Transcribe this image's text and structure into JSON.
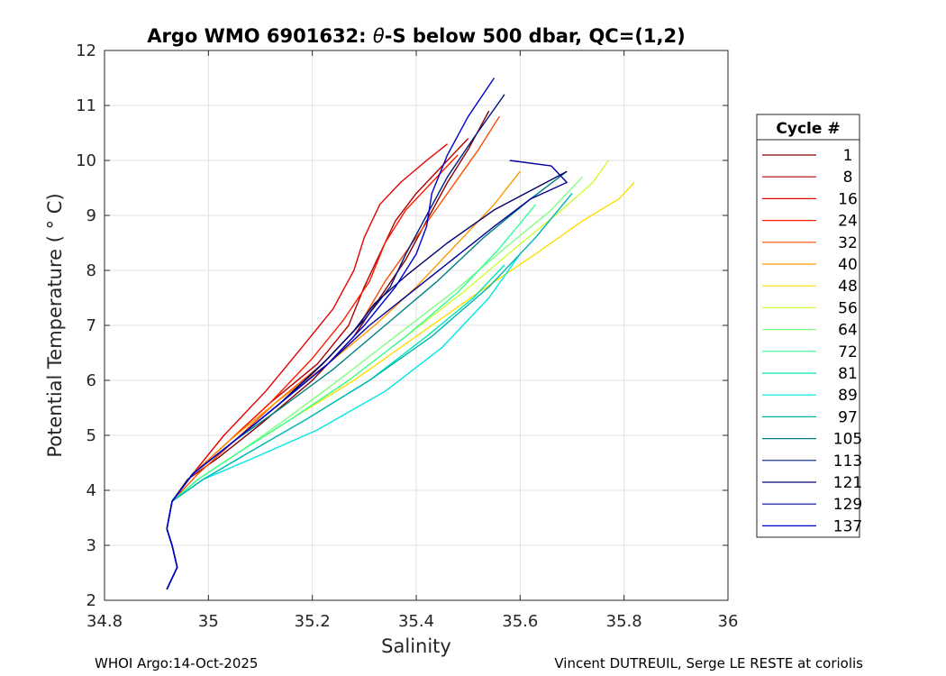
{
  "chart_data": {
    "type": "line",
    "title": "Argo WMO 6901632: θ-S below 500 dbar,  QC=(1,2)",
    "title_parts": {
      "before": "Argo WMO 6901632: ",
      "symbol": "θ",
      "after": "-S below 500 dbar,  QC=(1,2)"
    },
    "xlabel": "Salinity",
    "ylabel": "Potential Temperature ( ° C)",
    "xlim": [
      34.8,
      36
    ],
    "ylim": [
      2,
      12
    ],
    "xticks": [
      "34.8",
      "35",
      "35.2",
      "35.4",
      "35.6",
      "35.8",
      "36"
    ],
    "yticks": [
      "2",
      "3",
      "4",
      "5",
      "6",
      "7",
      "8",
      "9",
      "10",
      "11",
      "12"
    ],
    "grid": true,
    "legend_position": "right-outside",
    "legend": {
      "title": "Cycle #",
      "entries": [
        {
          "label": "1",
          "color": "#800000"
        },
        {
          "label": "8",
          "color": "#b30000"
        },
        {
          "label": "16",
          "color": "#e60000"
        },
        {
          "label": "24",
          "color": "#ff1a00"
        },
        {
          "label": "32",
          "color": "#ff4d00"
        },
        {
          "label": "40",
          "color": "#ff9900"
        },
        {
          "label": "48",
          "color": "#ffdd00"
        },
        {
          "label": "56",
          "color": "#ccff33"
        },
        {
          "label": "64",
          "color": "#80ff80"
        },
        {
          "label": "72",
          "color": "#33ff99"
        },
        {
          "label": "81",
          "color": "#00e6b3"
        },
        {
          "label": "89",
          "color": "#00e6e6"
        },
        {
          "label": "97",
          "color": "#00b3b3"
        },
        {
          "label": "105",
          "color": "#007f7f"
        },
        {
          "label": "113",
          "color": "#001a80"
        },
        {
          "label": "121",
          "color": "#00006b"
        },
        {
          "label": "129",
          "color": "#000099"
        },
        {
          "label": "137",
          "color": "#0000cc"
        }
      ]
    },
    "series": [
      {
        "name": "1",
        "x": [
          34.92,
          34.94,
          34.93,
          34.92,
          34.93,
          34.96,
          35.02,
          35.1,
          35.2,
          35.28,
          35.33,
          35.38,
          35.42,
          35.46,
          35.5,
          35.54
        ],
        "y": [
          2.2,
          2.6,
          3.0,
          3.3,
          3.8,
          4.2,
          4.6,
          5.2,
          6.0,
          6.8,
          7.5,
          8.2,
          8.9,
          9.6,
          10.2,
          10.9
        ]
      },
      {
        "name": "8",
        "x": [
          34.92,
          34.94,
          34.93,
          34.92,
          34.93,
          34.97,
          35.04,
          35.12,
          35.21,
          35.27,
          35.3,
          35.33,
          35.36,
          35.4,
          35.45,
          35.5
        ],
        "y": [
          2.2,
          2.6,
          3.0,
          3.3,
          3.8,
          4.3,
          4.9,
          5.6,
          6.3,
          7.0,
          7.7,
          8.3,
          8.9,
          9.4,
          9.9,
          10.4
        ]
      },
      {
        "name": "16",
        "x": [
          34.92,
          34.94,
          34.93,
          34.92,
          34.93,
          34.97,
          35.03,
          35.11,
          35.18,
          35.24,
          35.28,
          35.3,
          35.33,
          35.37,
          35.42,
          35.46
        ],
        "y": [
          2.2,
          2.6,
          3.0,
          3.3,
          3.8,
          4.3,
          5.0,
          5.8,
          6.6,
          7.3,
          8.0,
          8.6,
          9.2,
          9.6,
          10.0,
          10.3
        ]
      },
      {
        "name": "24",
        "x": [
          34.92,
          34.94,
          34.93,
          34.92,
          34.93,
          34.97,
          35.04,
          35.12,
          35.2,
          35.26,
          35.31,
          35.34,
          35.38,
          35.43,
          35.48
        ],
        "y": [
          2.2,
          2.6,
          3.0,
          3.3,
          3.8,
          4.3,
          4.9,
          5.6,
          6.4,
          7.1,
          7.8,
          8.5,
          9.1,
          9.6,
          10.1
        ]
      },
      {
        "name": "32",
        "x": [
          34.92,
          34.94,
          34.93,
          34.92,
          34.93,
          34.98,
          35.05,
          35.13,
          35.22,
          35.29,
          35.34,
          35.4,
          35.46,
          35.52,
          35.56
        ],
        "y": [
          2.2,
          2.6,
          3.0,
          3.3,
          3.8,
          4.3,
          4.9,
          5.6,
          6.3,
          7.0,
          7.8,
          8.6,
          9.4,
          10.2,
          10.8
        ]
      },
      {
        "name": "40",
        "x": [
          34.92,
          34.94,
          34.93,
          34.92,
          34.93,
          34.97,
          35.04,
          35.13,
          35.23,
          35.32,
          35.4,
          35.48,
          35.55,
          35.6
        ],
        "y": [
          2.2,
          2.6,
          3.0,
          3.3,
          3.8,
          4.3,
          4.9,
          5.6,
          6.3,
          7.0,
          7.7,
          8.5,
          9.2,
          9.8
        ]
      },
      {
        "name": "48",
        "x": [
          34.92,
          34.94,
          34.93,
          34.92,
          34.93,
          34.98,
          35.06,
          35.16,
          35.28,
          35.4,
          35.52,
          35.63,
          35.72,
          35.79,
          35.82
        ],
        "y": [
          2.2,
          2.6,
          3.0,
          3.3,
          3.8,
          4.2,
          4.7,
          5.3,
          6.0,
          6.8,
          7.6,
          8.3,
          8.9,
          9.3,
          9.6
        ]
      },
      {
        "name": "56",
        "x": [
          34.92,
          34.94,
          34.93,
          34.92,
          34.93,
          34.98,
          35.06,
          35.16,
          35.27,
          35.38,
          35.49,
          35.59,
          35.68,
          35.74,
          35.77
        ],
        "y": [
          2.2,
          2.6,
          3.0,
          3.3,
          3.8,
          4.2,
          4.7,
          5.3,
          6.0,
          6.8,
          7.6,
          8.4,
          9.1,
          9.6,
          10.0
        ]
      },
      {
        "name": "64",
        "x": [
          34.92,
          34.94,
          34.93,
          34.92,
          34.93,
          34.98,
          35.06,
          35.15,
          35.25,
          35.36,
          35.47,
          35.57,
          35.66,
          35.72
        ],
        "y": [
          2.2,
          2.6,
          3.0,
          3.3,
          3.8,
          4.2,
          4.7,
          5.3,
          6.0,
          6.8,
          7.6,
          8.4,
          9.1,
          9.7
        ]
      },
      {
        "name": "72",
        "x": [
          34.92,
          34.94,
          34.93,
          34.92,
          34.93,
          34.98,
          35.06,
          35.16,
          35.27,
          35.38,
          35.48,
          35.56,
          35.63
        ],
        "y": [
          2.2,
          2.6,
          3.0,
          3.3,
          3.8,
          4.2,
          4.7,
          5.3,
          6.0,
          6.8,
          7.6,
          8.4,
          9.2
        ]
      },
      {
        "name": "81",
        "x": [
          34.92,
          34.94,
          34.93,
          34.92,
          34.93,
          34.99,
          35.08,
          35.19,
          35.31,
          35.42,
          35.51,
          35.57
        ],
        "y": [
          2.2,
          2.6,
          3.0,
          3.3,
          3.8,
          4.2,
          4.7,
          5.3,
          6.0,
          6.8,
          7.5,
          8.1
        ]
      },
      {
        "name": "89",
        "x": [
          34.92,
          34.94,
          34.93,
          34.92,
          34.93,
          34.99,
          35.09,
          35.21,
          35.34,
          35.45,
          35.54,
          35.6
        ],
        "y": [
          2.2,
          2.6,
          3.0,
          3.3,
          3.8,
          4.2,
          4.6,
          5.1,
          5.8,
          6.6,
          7.5,
          8.3
        ]
      },
      {
        "name": "97",
        "x": [
          34.92,
          34.94,
          34.93,
          34.92,
          34.93,
          34.99,
          35.08,
          35.19,
          35.31,
          35.43,
          35.54,
          35.63,
          35.7
        ],
        "y": [
          2.2,
          2.6,
          3.0,
          3.3,
          3.8,
          4.2,
          4.7,
          5.3,
          6.0,
          6.8,
          7.7,
          8.6,
          9.4
        ]
      },
      {
        "name": "105",
        "x": [
          34.92,
          34.94,
          34.93,
          34.92,
          34.93,
          34.97,
          35.05,
          35.14,
          35.24,
          35.34,
          35.44,
          35.53,
          35.62,
          35.69
        ],
        "y": [
          2.2,
          2.6,
          3.0,
          3.3,
          3.8,
          4.3,
          4.9,
          5.5,
          6.2,
          7.0,
          7.8,
          8.6,
          9.3,
          9.8
        ]
      },
      {
        "name": "113",
        "x": [
          34.92,
          34.94,
          34.93,
          34.92,
          34.93,
          34.97,
          35.05,
          35.14,
          35.23,
          35.3,
          35.35,
          35.38,
          35.42,
          35.46,
          35.51,
          35.57
        ],
        "y": [
          2.2,
          2.6,
          3.0,
          3.3,
          3.8,
          4.3,
          4.9,
          5.6,
          6.4,
          7.1,
          7.7,
          8.3,
          9.0,
          9.7,
          10.4,
          11.2
        ]
      },
      {
        "name": "121",
        "x": [
          34.92,
          34.94,
          34.93,
          34.92,
          34.93,
          34.97,
          35.05,
          35.14,
          35.22,
          35.28,
          35.32,
          35.38,
          35.46,
          35.55,
          35.63,
          35.69
        ],
        "y": [
          2.2,
          2.6,
          3.0,
          3.3,
          3.8,
          4.3,
          4.9,
          5.6,
          6.3,
          6.9,
          7.4,
          7.9,
          8.5,
          9.1,
          9.5,
          9.8
        ]
      },
      {
        "name": "129",
        "x": [
          34.92,
          34.94,
          34.93,
          34.92,
          34.93,
          34.97,
          35.05,
          35.14,
          35.23,
          35.31,
          35.39,
          35.47,
          35.55,
          35.62,
          35.69,
          35.66,
          35.58
        ],
        "y": [
          2.2,
          2.6,
          3.0,
          3.3,
          3.8,
          4.3,
          4.9,
          5.6,
          6.3,
          7.0,
          7.6,
          8.2,
          8.8,
          9.3,
          9.6,
          9.9,
          10.0
        ]
      },
      {
        "name": "137",
        "x": [
          34.92,
          34.94,
          34.93,
          34.92,
          34.93,
          34.97,
          35.05,
          35.14,
          35.23,
          35.3,
          35.36,
          35.4,
          35.42,
          35.43,
          35.46,
          35.5,
          35.55
        ],
        "y": [
          2.2,
          2.6,
          3.0,
          3.3,
          3.8,
          4.3,
          4.9,
          5.6,
          6.3,
          7.0,
          7.7,
          8.3,
          8.8,
          9.4,
          10.1,
          10.8,
          11.5
        ]
      }
    ]
  },
  "footer": {
    "left": "WHOI Argo:14-Oct-2025",
    "right": "Vincent DUTREUIL, Serge LE RESTE at coriolis"
  }
}
